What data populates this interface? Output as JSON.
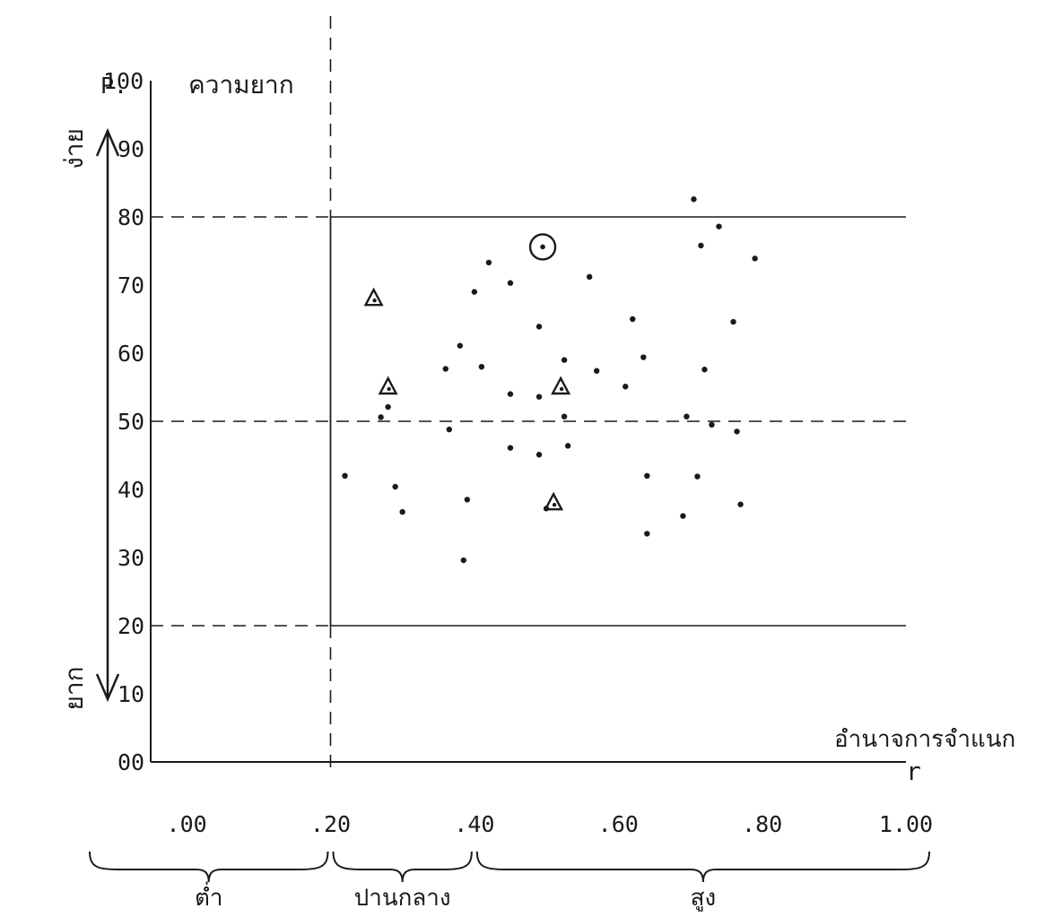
{
  "chart_data": {
    "type": "scatter",
    "title": "",
    "y_header_letter": "P.",
    "ylabel": "ความยาก",
    "xlabel": "อำนาจการจำแนก",
    "x_symbol": "r",
    "y_ticks": [
      "00",
      "10",
      "20",
      "30",
      "40",
      "50",
      "60",
      "70",
      "80",
      "90",
      "100"
    ],
    "x_ticks": [
      {
        "value": 0.0,
        "label": ".00"
      },
      {
        "value": 0.2,
        "label": ".20"
      },
      {
        "value": 0.4,
        "label": ".40"
      },
      {
        "value": 0.6,
        "label": ".60"
      },
      {
        "value": 0.8,
        "label": ".80"
      },
      {
        "value": 1.0,
        "label": "1.00"
      }
    ],
    "xlim": [
      -0.05,
      1.0
    ],
    "ylim": [
      0,
      100
    ],
    "arrow_labels": {
      "top": "ง่าย",
      "bottom": "ยาก"
    },
    "brace_labels": [
      {
        "from": -0.05,
        "to": 0.2,
        "label": "ต่ำ"
      },
      {
        "from": 0.2,
        "to": 0.4,
        "label": "ปานกลาง"
      },
      {
        "from": 0.4,
        "to": 1.0,
        "label": "สูง"
      }
    ],
    "reference_lines": {
      "dashed_horizontal": [
        80,
        50,
        20
      ],
      "dashed_vertical": [
        0.2
      ],
      "solid_box": {
        "x": [
          0.2,
          1.0
        ],
        "y": [
          20,
          80
        ]
      }
    },
    "series": [
      {
        "marker": "dot",
        "points": [
          [
            0.22,
            42.0
          ],
          [
            0.27,
            50.6
          ],
          [
            0.28,
            52.1
          ],
          [
            0.29,
            40.4
          ],
          [
            0.3,
            36.7
          ],
          [
            0.36,
            57.7
          ],
          [
            0.365,
            48.8
          ],
          [
            0.38,
            61.1
          ],
          [
            0.385,
            29.6
          ],
          [
            0.39,
            38.5
          ],
          [
            0.4,
            69.0
          ],
          [
            0.41,
            58.0
          ],
          [
            0.42,
            73.3
          ],
          [
            0.45,
            70.3
          ],
          [
            0.45,
            54.0
          ],
          [
            0.45,
            46.1
          ],
          [
            0.49,
            53.6
          ],
          [
            0.49,
            45.1
          ],
          [
            0.49,
            63.9
          ],
          [
            0.5,
            37.2
          ],
          [
            0.525,
            59.0
          ],
          [
            0.525,
            50.7
          ],
          [
            0.53,
            46.4
          ],
          [
            0.56,
            71.2
          ],
          [
            0.57,
            57.4
          ],
          [
            0.61,
            55.1
          ],
          [
            0.62,
            65.0
          ],
          [
            0.635,
            59.4
          ],
          [
            0.64,
            42.0
          ],
          [
            0.64,
            33.5
          ],
          [
            0.69,
            36.1
          ],
          [
            0.695,
            50.7
          ],
          [
            0.705,
            82.6
          ],
          [
            0.71,
            41.9
          ],
          [
            0.715,
            75.8
          ],
          [
            0.72,
            57.6
          ],
          [
            0.73,
            49.5
          ],
          [
            0.74,
            78.6
          ],
          [
            0.76,
            64.6
          ],
          [
            0.765,
            48.5
          ],
          [
            0.77,
            37.8
          ],
          [
            0.79,
            73.9
          ]
        ]
      },
      {
        "marker": "triangle",
        "points": [
          [
            0.26,
            68.0
          ],
          [
            0.28,
            55.0
          ],
          [
            0.52,
            55.0
          ],
          [
            0.51,
            38.0
          ]
        ]
      },
      {
        "marker": "circled-dot",
        "points": [
          [
            0.495,
            75.6
          ]
        ]
      }
    ]
  }
}
